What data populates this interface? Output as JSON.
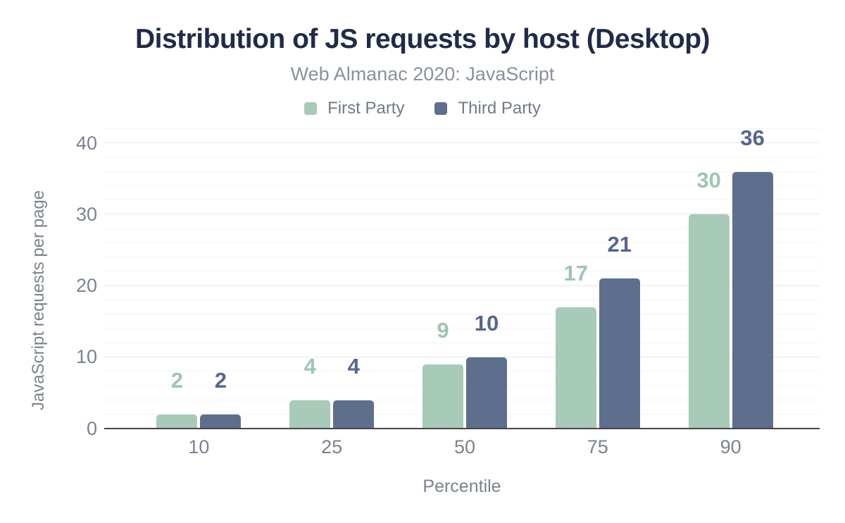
{
  "chart_data": {
    "type": "bar",
    "title": "Distribution of JS requests by host (Desktop)",
    "subtitle": "Web Almanac 2020: JavaScript",
    "xlabel": "Percentile",
    "ylabel": "JavaScript requests per page",
    "categories": [
      "10",
      "25",
      "50",
      "75",
      "90"
    ],
    "series": [
      {
        "name": "First Party",
        "values": [
          2,
          4,
          9,
          17,
          30
        ],
        "color": "#a8cab9",
        "label_color": "#9ec5b1"
      },
      {
        "name": "Third Party",
        "values": [
          2,
          4,
          10,
          21,
          36
        ],
        "color": "#5e6f8e",
        "label_color": "#54678f"
      }
    ],
    "ylim": [
      0,
      40
    ],
    "y_ticks": [
      0,
      10,
      20,
      30,
      40
    ],
    "minor_grid_step": 2,
    "grid_extent": 42,
    "grid": true,
    "legend_position": "top",
    "bar_value_labels": true
  },
  "colors": {
    "title": "#1f2b49",
    "subtitle": "#8a919c",
    "axis_text": "#7b838e",
    "legend_text": "#717a87",
    "grid_major": "#e7e7e7",
    "grid_minor": "#f5f5f5",
    "baseline": "#464646",
    "background": "#ffffff"
  }
}
